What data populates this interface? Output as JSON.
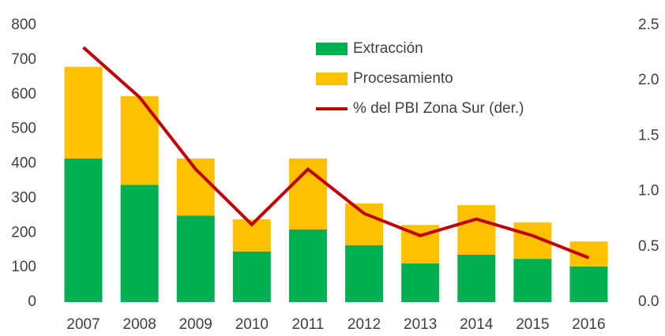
{
  "chart_data": {
    "type": "bar",
    "categories": [
      "2007",
      "2008",
      "2009",
      "2010",
      "2011",
      "2012",
      "2013",
      "2014",
      "2015",
      "2016"
    ],
    "series": [
      {
        "name": "Extracción",
        "color": "#00B050",
        "values": [
          415,
          339,
          250,
          146,
          210,
          164,
          112,
          137,
          125,
          103
        ]
      },
      {
        "name": "Procesamiento",
        "color": "#FFC000",
        "values": [
          265,
          256,
          165,
          93,
          205,
          121,
          111,
          143,
          105,
          72
        ]
      },
      {
        "name": "% del PBI Zona Sur (der.)",
        "color": "#C00000",
        "type": "line",
        "axis": "y2",
        "values": [
          2.3,
          1.85,
          1.2,
          0.7,
          1.2,
          0.8,
          0.6,
          0.75,
          0.6,
          0.4
        ]
      }
    ],
    "stacked": true,
    "ylim": [
      0,
      800
    ],
    "yticks": [
      0,
      100,
      200,
      300,
      400,
      500,
      600,
      700,
      800
    ],
    "y2lim": [
      0,
      2.5
    ],
    "y2ticks": [
      {
        "value": 0,
        "label": "0.0"
      },
      0.5,
      {
        "value": 1,
        "label": "1.0"
      },
      1.5,
      {
        "value": 2,
        "label": "2.0"
      },
      2.5
    ],
    "grid": false,
    "legend": "top"
  }
}
